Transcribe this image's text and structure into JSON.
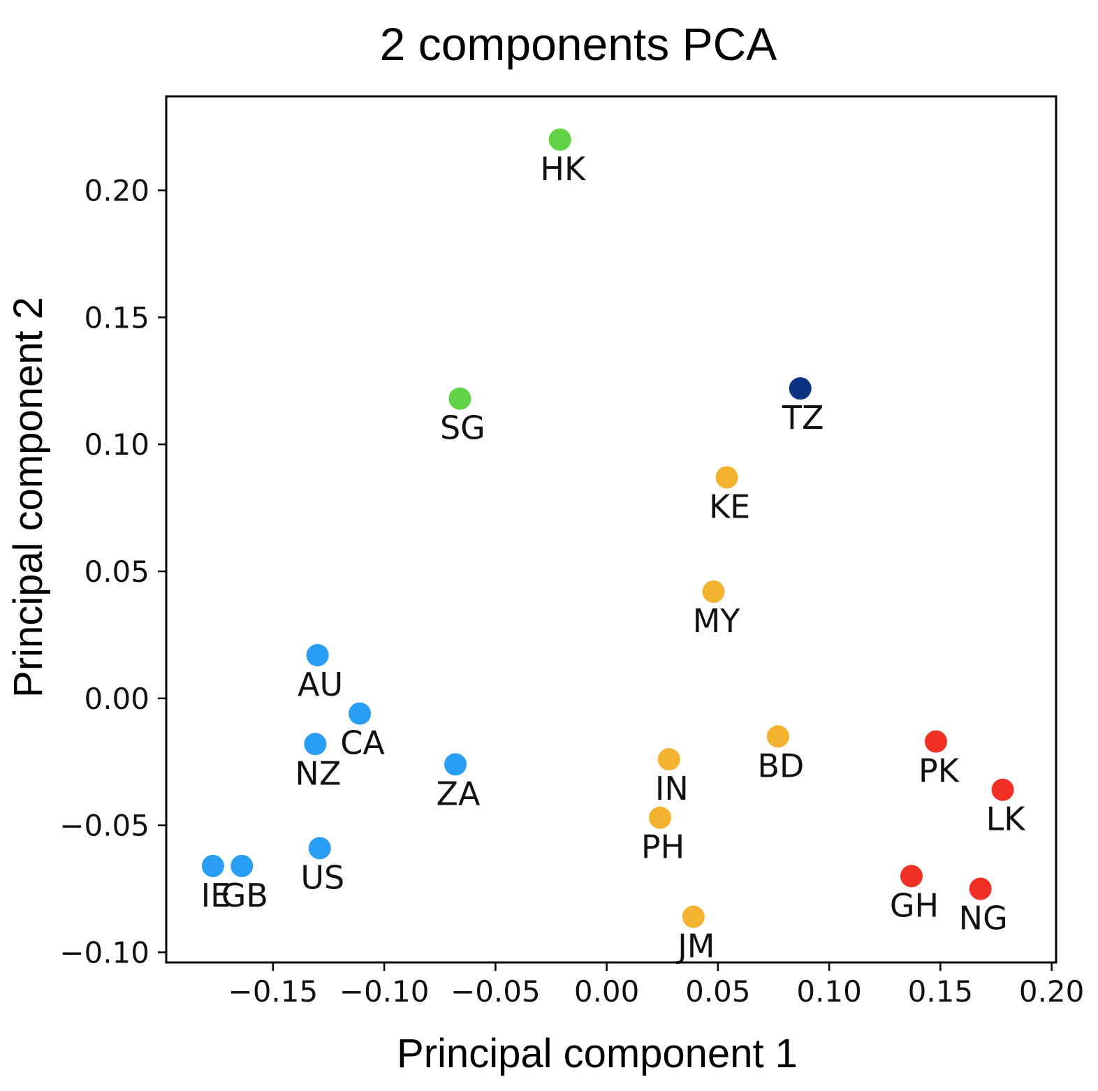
{
  "chart_data": {
    "type": "scatter",
    "title": "2 components PCA",
    "xlabel": "Principal component 1",
    "ylabel": "Principal component 2",
    "xlim": [
      -0.198,
      0.202
    ],
    "ylim": [
      -0.104,
      0.237
    ],
    "xticks": [
      -0.15,
      -0.1,
      -0.05,
      0.0,
      0.05,
      0.1,
      0.15,
      0.2
    ],
    "xtick_labels": [
      "−0.15",
      "−0.10",
      "−0.05",
      "0.00",
      "0.05",
      "0.10",
      "0.15",
      "0.20"
    ],
    "yticks": [
      -0.1,
      -0.05,
      0.0,
      0.05,
      0.1,
      0.15,
      0.2
    ],
    "ytick_labels": [
      "−0.10",
      "−0.05",
      "0.00",
      "0.05",
      "0.10",
      "0.15",
      "0.20"
    ],
    "grid": false,
    "colors": {
      "blue": "#2a9df4",
      "green": "#5fd247",
      "navy": "#0b3283",
      "orange": "#f4b231",
      "red": "#f03024"
    },
    "points": [
      {
        "label": "HK",
        "x": -0.021,
        "y": 0.22,
        "color": "green"
      },
      {
        "label": "SG",
        "x": -0.066,
        "y": 0.118,
        "color": "green"
      },
      {
        "label": "TZ",
        "x": 0.087,
        "y": 0.122,
        "color": "navy"
      },
      {
        "label": "KE",
        "x": 0.054,
        "y": 0.087,
        "color": "orange"
      },
      {
        "label": "MY",
        "x": 0.048,
        "y": 0.042,
        "color": "orange"
      },
      {
        "label": "BD",
        "x": 0.077,
        "y": -0.015,
        "color": "orange"
      },
      {
        "label": "IN",
        "x": 0.028,
        "y": -0.024,
        "color": "orange"
      },
      {
        "label": "PH",
        "x": 0.024,
        "y": -0.047,
        "color": "orange"
      },
      {
        "label": "JM",
        "x": 0.039,
        "y": -0.086,
        "color": "orange"
      },
      {
        "label": "AU",
        "x": -0.13,
        "y": 0.017,
        "color": "blue"
      },
      {
        "label": "CA",
        "x": -0.111,
        "y": -0.006,
        "color": "blue"
      },
      {
        "label": "NZ",
        "x": -0.131,
        "y": -0.018,
        "color": "blue"
      },
      {
        "label": "ZA",
        "x": -0.068,
        "y": -0.026,
        "color": "blue"
      },
      {
        "label": "US",
        "x": -0.129,
        "y": -0.059,
        "color": "blue"
      },
      {
        "label": "IE",
        "x": -0.177,
        "y": -0.066,
        "color": "blue"
      },
      {
        "label": "GB",
        "x": -0.164,
        "y": -0.066,
        "color": "blue"
      },
      {
        "label": "PK",
        "x": 0.148,
        "y": -0.017,
        "color": "red"
      },
      {
        "label": "LK",
        "x": 0.178,
        "y": -0.036,
        "color": "red"
      },
      {
        "label": "GH",
        "x": 0.137,
        "y": -0.07,
        "color": "red"
      },
      {
        "label": "NG",
        "x": 0.168,
        "y": -0.075,
        "color": "red"
      }
    ]
  }
}
